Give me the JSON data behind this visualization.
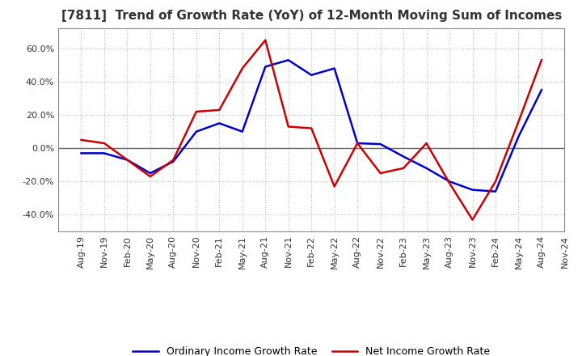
{
  "title": "[7811]  Trend of Growth Rate (YoY) of 12-Month Moving Sum of Incomes",
  "title_fontsize": 11,
  "ylim": [
    -50,
    72
  ],
  "yticks": [
    -40.0,
    -20.0,
    0.0,
    20.0,
    40.0,
    60.0
  ],
  "background_color": "#ffffff",
  "grid_color": "#bbbbbb",
  "legend_labels": [
    "Ordinary Income Growth Rate",
    "Net Income Growth Rate"
  ],
  "legend_colors": [
    "#0000cc",
    "#cc0000"
  ],
  "x_labels": [
    "Aug-19",
    "Nov-19",
    "Feb-20",
    "May-20",
    "Aug-20",
    "Nov-20",
    "Feb-21",
    "May-21",
    "Aug-21",
    "Nov-21",
    "Feb-22",
    "May-22",
    "Aug-22",
    "Nov-22",
    "Feb-23",
    "May-23",
    "Aug-23",
    "Nov-23",
    "Feb-24",
    "May-24",
    "Aug-24",
    "Nov-24"
  ],
  "ordinary_income": [
    -3.0,
    -3.0,
    -7.0,
    -15.0,
    -8.0,
    10.0,
    15.0,
    10.0,
    49.0,
    53.0,
    44.0,
    48.0,
    3.0,
    2.5,
    -5.0,
    -12.0,
    -20.0,
    -25.0,
    -26.0,
    7.0,
    35.0,
    null
  ],
  "net_income": [
    5.0,
    3.0,
    -7.0,
    -17.0,
    -7.0,
    22.0,
    23.0,
    48.0,
    65.0,
    13.0,
    12.0,
    -23.0,
    3.0,
    -15.0,
    -12.0,
    3.0,
    -21.0,
    -43.0,
    -20.0,
    16.0,
    53.0,
    null
  ]
}
